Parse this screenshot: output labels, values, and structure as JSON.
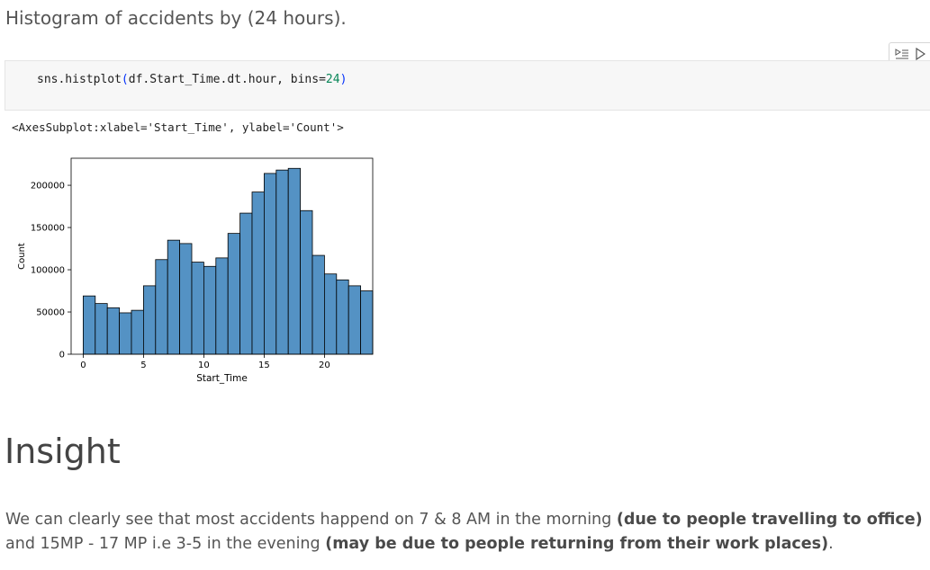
{
  "markdown": {
    "heading": "Histogram of accidents by (24 hours)."
  },
  "toolbar": {
    "icons": [
      "run-by-line-icon",
      "run-cell-icon"
    ]
  },
  "code_cell": {
    "prefix": "sns.histplot",
    "open_paren": "(",
    "args": "df.Start_Time.dt.hour, bins=",
    "bins_value": "24",
    "close_paren": ")"
  },
  "output": {
    "text": "<AxesSubplot:xlabel='Start_Time', ylabel='Count'>"
  },
  "chart_data": {
    "type": "bar",
    "title": "",
    "xlabel": "Start_Time",
    "ylabel": "Count",
    "categories": [
      0,
      1,
      2,
      3,
      4,
      5,
      6,
      7,
      8,
      9,
      10,
      11,
      12,
      13,
      14,
      15,
      16,
      17,
      18,
      19,
      20,
      21,
      22,
      23
    ],
    "values": [
      69000,
      60000,
      55000,
      49000,
      52000,
      81000,
      112000,
      135000,
      131000,
      109000,
      104000,
      114000,
      143000,
      167000,
      192000,
      214000,
      218000,
      220000,
      170000,
      117000,
      95000,
      88000,
      81000,
      75000
    ],
    "xlim": [
      -1,
      24
    ],
    "ylim": [
      0,
      232000
    ],
    "xticks": [
      0,
      5,
      10,
      15,
      20
    ],
    "yticks": [
      0,
      50000,
      100000,
      150000,
      200000
    ],
    "bar_color": "#5492c4",
    "edge_color": "#000000",
    "grid": false
  },
  "insight": {
    "heading": "Insight",
    "text_1": "We can clearly see that most accidents happend on 7 & 8 AM in the morning ",
    "bold_1": "(due to people travelling to office)",
    "text_2": " and 15MP - 17 MP i.e 3-5 in the evening ",
    "bold_2": "(may be due to people returning from their work places)",
    "text_3": "."
  }
}
